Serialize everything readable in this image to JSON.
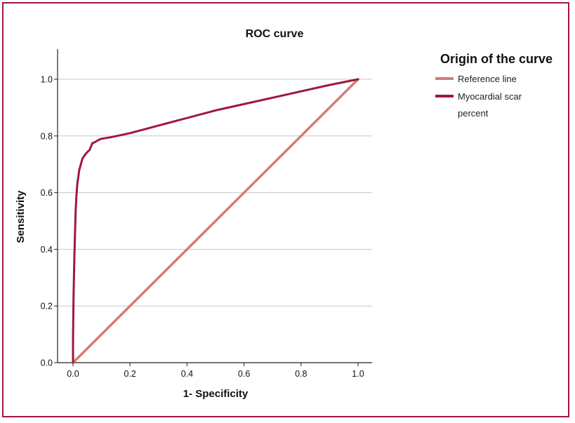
{
  "chart_data": {
    "type": "line",
    "title": "ROC curve",
    "xlabel": "1- Specificity",
    "ylabel": "Sensitivity",
    "xlim": [
      0,
      1
    ],
    "ylim": [
      0,
      1
    ],
    "xticks": [
      "0.0",
      "0.2",
      "0.4",
      "0.6",
      "0.8",
      "1.0"
    ],
    "yticks": [
      "0.0",
      "0.2",
      "0.4",
      "0.6",
      "0.8",
      "1.0"
    ],
    "grid": "horizontal",
    "legend": {
      "title": "Origin of the curve",
      "placement": "right",
      "entries": [
        {
          "lines": [
            "Reference line"
          ],
          "color": "#d27d78"
        },
        {
          "lines": [
            "Myocardial scar",
            "percent"
          ],
          "color": "#a0173f"
        }
      ]
    },
    "series": [
      {
        "name": "Reference line",
        "color": "#d27d78",
        "x": [
          0,
          1
        ],
        "y": [
          0,
          1
        ]
      },
      {
        "name": "Myocardial scar percent",
        "color": "#a0173f",
        "x": [
          0,
          0,
          0.002,
          0.005,
          0.007,
          0.009,
          0.012,
          0.015,
          0.022,
          0.033,
          0.043,
          0.052,
          0.058,
          0.068,
          0.075,
          0.088,
          0.1,
          0.13,
          0.2,
          0.35,
          0.5,
          0.7,
          0.9,
          1.0
        ],
        "y": [
          0,
          0.08,
          0.24,
          0.38,
          0.45,
          0.53,
          0.59,
          0.63,
          0.68,
          0.72,
          0.735,
          0.745,
          0.75,
          0.775,
          0.777,
          0.785,
          0.79,
          0.795,
          0.81,
          0.85,
          0.89,
          0.935,
          0.98,
          1.0
        ]
      }
    ]
  },
  "colors": {
    "frame": "#a0173f",
    "grid": "#c8c8c8",
    "axis": "#222222"
  }
}
